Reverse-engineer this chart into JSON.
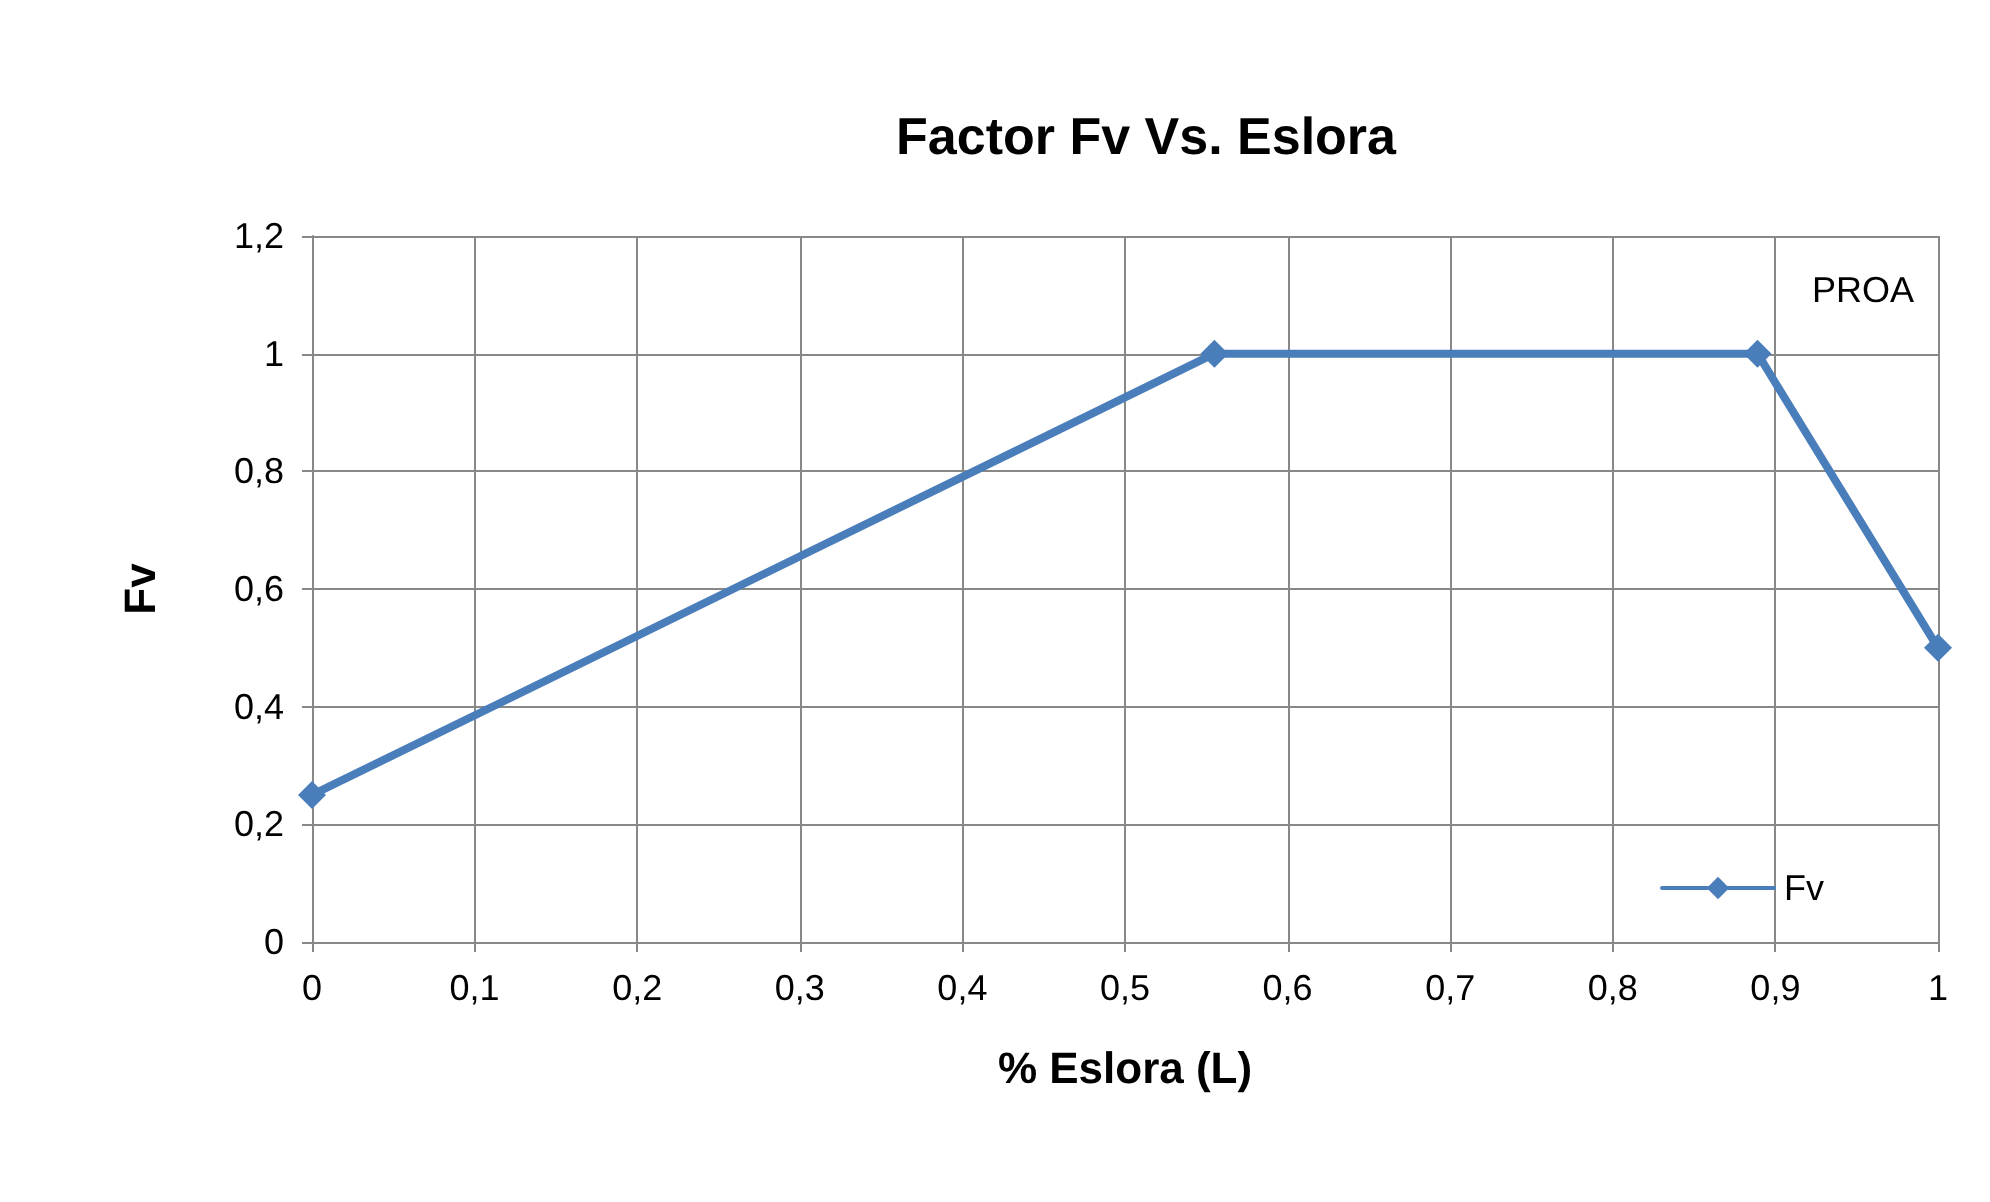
{
  "chart_data": {
    "type": "line",
    "title": "Factor Fv Vs. Eslora",
    "xlabel": "% Eslora (L)",
    "ylabel": "Fv",
    "x": [
      0,
      0.555,
      0.889,
      1
    ],
    "series": [
      {
        "name": "Fv",
        "color": "#4a7ebb",
        "values": [
          0.25,
          1,
          1,
          0.5
        ]
      }
    ],
    "xlim": [
      0,
      1
    ],
    "xticks": [
      0,
      {
        "value": 0.1,
        "label": "0,1"
      },
      {
        "value": 0.2,
        "label": "0,2"
      },
      {
        "value": 0.3,
        "label": "0,3"
      },
      {
        "value": 0.4,
        "label": "0,4"
      },
      {
        "value": 0.5,
        "label": "0,5"
      },
      {
        "value": 0.6,
        "label": "0,6"
      },
      {
        "value": 0.7,
        "label": "0,7"
      },
      {
        "value": 0.8,
        "label": "0,8"
      },
      {
        "value": 0.9,
        "label": "0,9"
      },
      1
    ],
    "ylim": [
      0,
      1.2
    ],
    "yticks": [
      0,
      {
        "value": 0.2,
        "label": "0,2"
      },
      {
        "value": 0.4,
        "label": "0,4"
      },
      {
        "value": 0.6,
        "label": "0,6"
      },
      {
        "value": 0.8,
        "label": "0,8"
      },
      1,
      {
        "value": 1.2,
        "label": "1,2"
      }
    ],
    "annotations": [
      "PROA"
    ],
    "grid": true,
    "legend": "bottom right",
    "marker": "diamond",
    "line_style": "solid"
  }
}
